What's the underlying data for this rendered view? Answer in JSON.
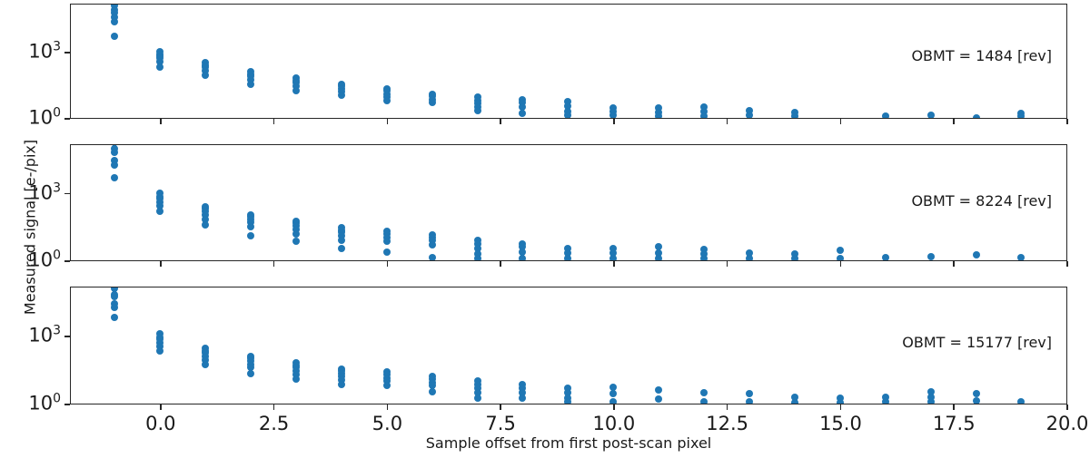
{
  "figure": {
    "xlabel": "Sample offset from first post-scan pixel",
    "ylabel": "Measured signal [e-/pix]",
    "dot_color": "#1f77b4",
    "spine_color": "#262626",
    "xtick_labels": [
      "0.0",
      "2.5",
      "5.0",
      "7.5",
      "10.0",
      "12.5",
      "15.0",
      "17.5",
      "20.0"
    ],
    "ytick_base": "10",
    "ytick_exponents_labeled": [
      3,
      0
    ]
  },
  "chart_data": [
    {
      "type": "scatter",
      "annotation": "OBMT = 1484 [rev]",
      "xlabel_shared": "Sample offset from first post-scan pixel",
      "ylabel_shared": "Measured signal [e-/pix]",
      "xlim": [
        -2,
        20
      ],
      "ylog10_lim": [
        0,
        5.2
      ],
      "xticks": [
        0,
        2.5,
        5,
        7.5,
        10,
        12.5,
        15,
        17.5,
        20
      ],
      "yticks": [
        1,
        1000
      ],
      "grid": false,
      "clusters": [
        {
          "offset": -1,
          "signal_epix": [
            120000,
            79000,
            56000,
            35000,
            22000,
            4800
          ]
        },
        {
          "offset": 0,
          "signal_epix": [
            1000,
            790,
            630,
            500,
            355,
            200
          ]
        },
        {
          "offset": 1,
          "signal_epix": [
            320,
            250,
            200,
            140,
            90
          ]
        },
        {
          "offset": 2,
          "signal_epix": [
            125,
            100,
            79,
            56,
            35
          ]
        },
        {
          "offset": 3,
          "signal_epix": [
            63,
            50,
            40,
            28,
            18
          ]
        },
        {
          "offset": 4,
          "signal_epix": [
            35,
            28,
            22,
            16,
            11
          ]
        },
        {
          "offset": 5,
          "signal_epix": [
            22,
            18,
            12.5,
            9,
            6.3
          ]
        },
        {
          "offset": 6,
          "signal_epix": [
            12.5,
            10,
            7,
            5
          ]
        },
        {
          "offset": 7,
          "signal_epix": [
            9,
            6.3,
            4.5,
            3.2,
            2.2
          ]
        },
        {
          "offset": 8,
          "signal_epix": [
            7,
            5,
            3.2,
            1.6
          ]
        },
        {
          "offset": 9,
          "signal_epix": [
            5.6,
            3.5,
            2.0,
            1.4
          ]
        },
        {
          "offset": 10,
          "signal_epix": [
            2.8,
            2.0,
            1.4
          ]
        },
        {
          "offset": 11,
          "signal_epix": [
            2.8,
            1.8,
            1.25
          ]
        },
        {
          "offset": 12,
          "signal_epix": [
            3.2,
            2.0,
            1.25
          ]
        },
        {
          "offset": 13,
          "signal_epix": [
            2.2,
            1.4
          ]
        },
        {
          "offset": 14,
          "signal_epix": [
            1.8,
            1.25
          ]
        },
        {
          "offset": 16,
          "signal_epix": [
            1.3
          ]
        },
        {
          "offset": 17,
          "signal_epix": [
            1.4
          ]
        },
        {
          "offset": 18,
          "signal_epix": [
            1.05
          ]
        },
        {
          "offset": 19,
          "signal_epix": [
            1.6,
            1.25
          ]
        }
      ]
    },
    {
      "type": "scatter",
      "annotation": "OBMT = 8224 [rev]",
      "xlim": [
        -2,
        20
      ],
      "ylog10_lim": [
        0,
        5.2
      ],
      "xticks": [
        0,
        2.5,
        5,
        7.5,
        10,
        12.5,
        15,
        17.5,
        20
      ],
      "yticks": [
        1,
        1000
      ],
      "grid": false,
      "clusters": [
        {
          "offset": -1,
          "signal_epix": [
            180000,
            90000,
            66000,
            28000,
            18000,
            5000
          ]
        },
        {
          "offset": 0,
          "signal_epix": [
            1000,
            710,
            560,
            400,
            280,
            160
          ]
        },
        {
          "offset": 1,
          "signal_epix": [
            250,
            200,
            160,
            110,
            70,
            40
          ]
        },
        {
          "offset": 2,
          "signal_epix": [
            110,
            90,
            70,
            50,
            32,
            12.5
          ]
        },
        {
          "offset": 3,
          "signal_epix": [
            56,
            45,
            35,
            25,
            16,
            7
          ]
        },
        {
          "offset": 4,
          "signal_epix": [
            28,
            22,
            18,
            12.5,
            8,
            3.5
          ]
        },
        {
          "offset": 5,
          "signal_epix": [
            20,
            16,
            11,
            7,
            2.5
          ]
        },
        {
          "offset": 6,
          "signal_epix": [
            14,
            11,
            8,
            5,
            1.4
          ]
        },
        {
          "offset": 7,
          "signal_epix": [
            8,
            5.6,
            3.5,
            2.0,
            1.25
          ]
        },
        {
          "offset": 8,
          "signal_epix": [
            5.6,
            4.0,
            2.5,
            1.25
          ]
        },
        {
          "offset": 9,
          "signal_epix": [
            3.5,
            2.2,
            1.3
          ]
        },
        {
          "offset": 10,
          "signal_epix": [
            3.5,
            2.2,
            1.3
          ]
        },
        {
          "offset": 11,
          "signal_epix": [
            4.0,
            2.2,
            1.25
          ]
        },
        {
          "offset": 12,
          "signal_epix": [
            3.2,
            2.0,
            1.25
          ]
        },
        {
          "offset": 13,
          "signal_epix": [
            2.2,
            1.25
          ]
        },
        {
          "offset": 14,
          "signal_epix": [
            2.0,
            1.2
          ]
        },
        {
          "offset": 15,
          "signal_epix": [
            2.8,
            1.2
          ]
        },
        {
          "offset": 16,
          "signal_epix": [
            1.4
          ]
        },
        {
          "offset": 17,
          "signal_epix": [
            1.5
          ]
        },
        {
          "offset": 18,
          "signal_epix": [
            1.8
          ]
        },
        {
          "offset": 19,
          "signal_epix": [
            1.4
          ]
        }
      ]
    },
    {
      "type": "scatter",
      "annotation": "OBMT = 15177 [rev]",
      "xlim": [
        -2,
        20
      ],
      "ylog10_lim": [
        0,
        5.2
      ],
      "xticks": [
        0,
        2.5,
        5,
        7.5,
        10,
        12.5,
        15,
        17.5,
        20
      ],
      "yticks": [
        1,
        1000
      ],
      "grid": false,
      "clusters": [
        {
          "offset": -1,
          "signal_epix": [
            125000,
            63000,
            52000,
            26000,
            18000,
            6300
          ]
        },
        {
          "offset": 0,
          "signal_epix": [
            1250,
            900,
            710,
            500,
            355,
            225
          ]
        },
        {
          "offset": 1,
          "signal_epix": [
            280,
            225,
            180,
            125,
            90,
            56
          ]
        },
        {
          "offset": 2,
          "signal_epix": [
            125,
            100,
            79,
            56,
            40,
            22
          ]
        },
        {
          "offset": 3,
          "signal_epix": [
            63,
            50,
            40,
            28,
            20,
            12.5
          ]
        },
        {
          "offset": 4,
          "signal_epix": [
            35,
            28,
            22,
            16,
            11,
            7
          ]
        },
        {
          "offset": 5,
          "signal_epix": [
            25,
            20,
            14,
            10,
            6.3
          ]
        },
        {
          "offset": 6,
          "signal_epix": [
            16,
            12.5,
            9,
            6.3,
            3.5
          ]
        },
        {
          "offset": 7,
          "signal_epix": [
            10,
            7,
            5,
            3.2,
            1.8
          ]
        },
        {
          "offset": 8,
          "signal_epix": [
            7,
            5,
            3.2,
            1.8
          ]
        },
        {
          "offset": 9,
          "signal_epix": [
            5,
            3.2,
            1.8,
            1.25
          ]
        },
        {
          "offset": 10,
          "signal_epix": [
            5.6,
            2.8,
            1.25
          ]
        },
        {
          "offset": 11,
          "signal_epix": [
            4.0,
            1.6
          ]
        },
        {
          "offset": 12,
          "signal_epix": [
            3.2,
            1.25
          ]
        },
        {
          "offset": 13,
          "signal_epix": [
            2.8,
            1.25
          ]
        },
        {
          "offset": 14,
          "signal_epix": [
            2.0,
            1.12
          ]
        },
        {
          "offset": 15,
          "signal_epix": [
            1.8,
            1.12
          ]
        },
        {
          "offset": 16,
          "signal_epix": [
            2.0,
            1.2
          ]
        },
        {
          "offset": 17,
          "signal_epix": [
            3.5,
            2.0,
            1.25
          ]
        },
        {
          "offset": 18,
          "signal_epix": [
            2.8,
            1.4
          ]
        },
        {
          "offset": 19,
          "signal_epix": [
            1.3
          ]
        }
      ]
    }
  ]
}
